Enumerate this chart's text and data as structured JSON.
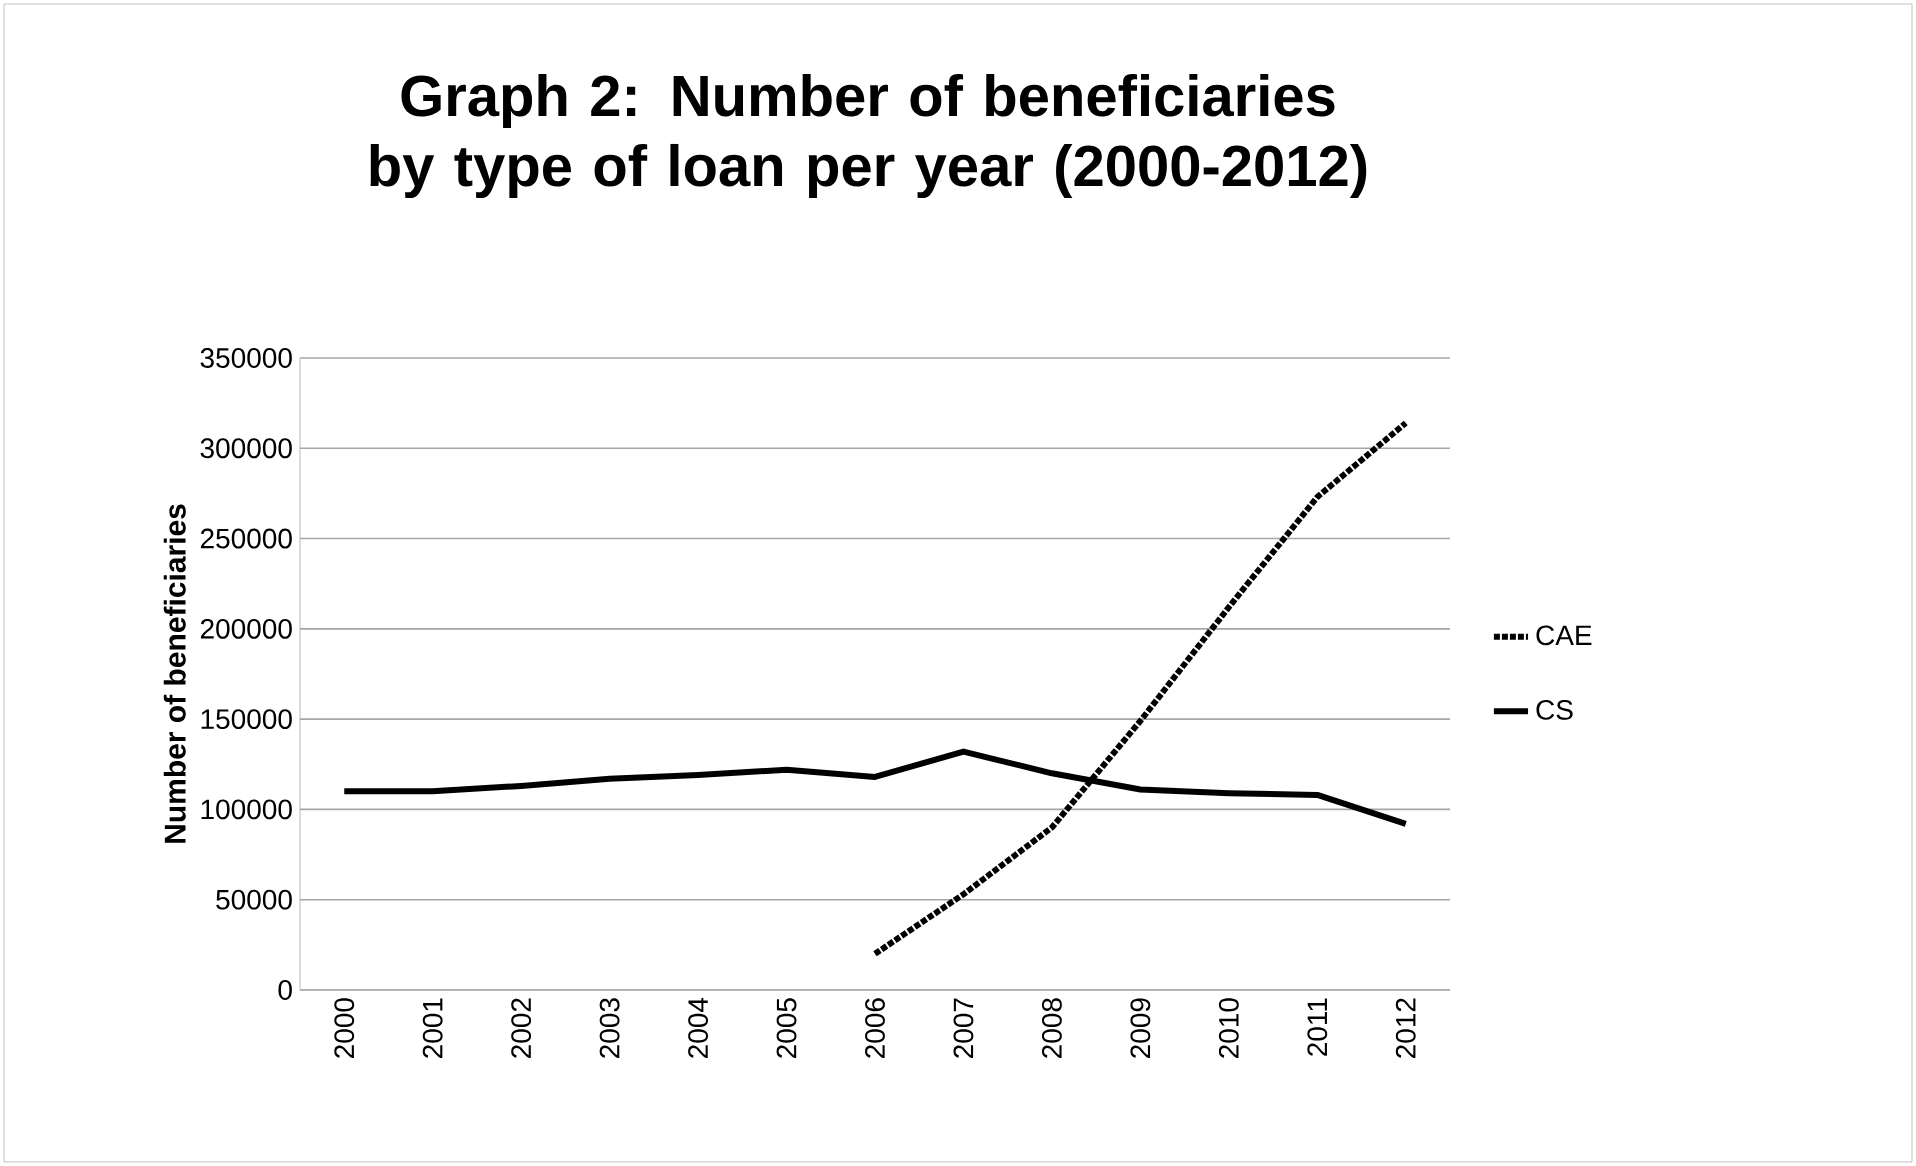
{
  "chart_data": {
    "type": "line",
    "title": "Graph 2: Number of beneficiaries by type of loan per year (2000-2012)",
    "ylabel": "Number of beneficiaries",
    "categories": [
      "2000",
      "2001",
      "2002",
      "2003",
      "2004",
      "2005",
      "2006",
      "2007",
      "2008",
      "2009",
      "2010",
      "2011",
      "2012"
    ],
    "series": [
      {
        "name": "CAE",
        "color": "#000000",
        "line_style": "dotted",
        "values": [
          null,
          null,
          null,
          null,
          null,
          null,
          20000,
          53000,
          90000,
          149000,
          212000,
          273000,
          314000
        ]
      },
      {
        "name": "CS",
        "color": "#000000",
        "line_style": "solid",
        "values": [
          110000,
          110000,
          113000,
          117000,
          119000,
          122000,
          118000,
          132000,
          120000,
          111000,
          109000,
          108000,
          92000
        ]
      }
    ],
    "ylim": [
      0,
      350000
    ],
    "yticks": [
      0,
      50000,
      100000,
      150000,
      200000,
      250000,
      300000,
      350000
    ],
    "grid": "y",
    "legend": "right",
    "marker": "none"
  }
}
